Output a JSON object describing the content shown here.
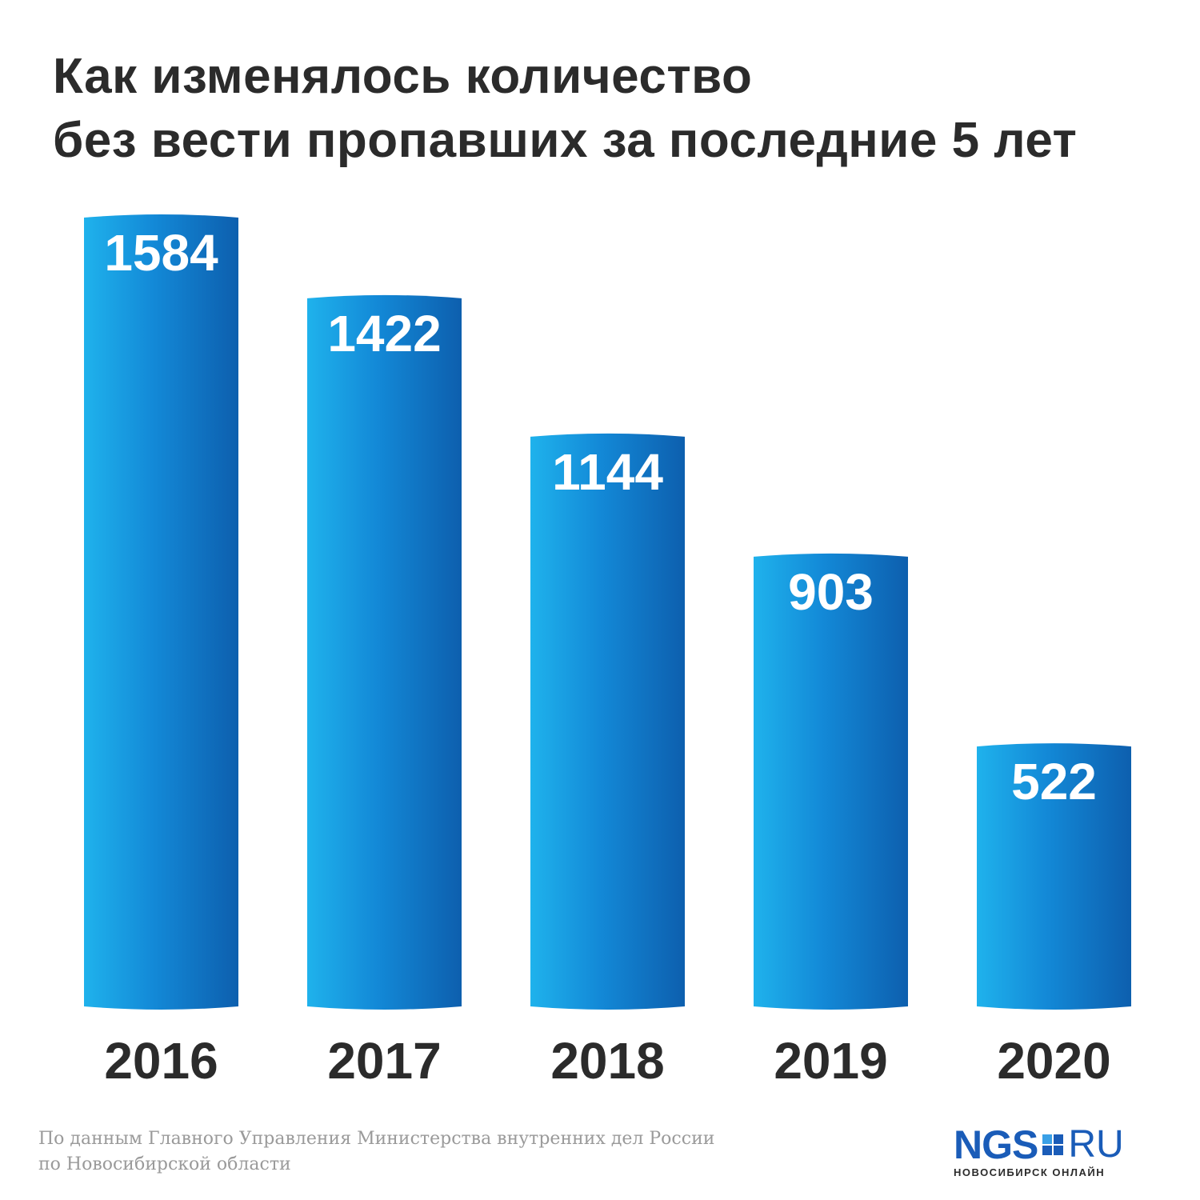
{
  "title_lines": [
    "Как изменялось количество",
    "без вести пропавших за последние 5 лет"
  ],
  "chart_data": {
    "type": "bar",
    "categories": [
      "2016",
      "2017",
      "2018",
      "2019",
      "2020"
    ],
    "values": [
      1584,
      1422,
      1144,
      903,
      522
    ],
    "value_labels": [
      "1584",
      "1422",
      "1144",
      "903",
      "522"
    ],
    "ylim": [
      0,
      1584
    ],
    "grid": false,
    "bar_colors": {
      "light": "#1fb2ec",
      "mid": "#1389d7",
      "dark": "#0d5fae"
    }
  },
  "source_lines": [
    "По данным Главного Управления Министерства внутренних дел России",
    "по Новосибирской области"
  ],
  "logo": {
    "name": "NGS",
    "suffix": "RU",
    "subtitle": "НОВОСИБИРСК ОНЛАЙН",
    "color": "#1a5cb8"
  }
}
